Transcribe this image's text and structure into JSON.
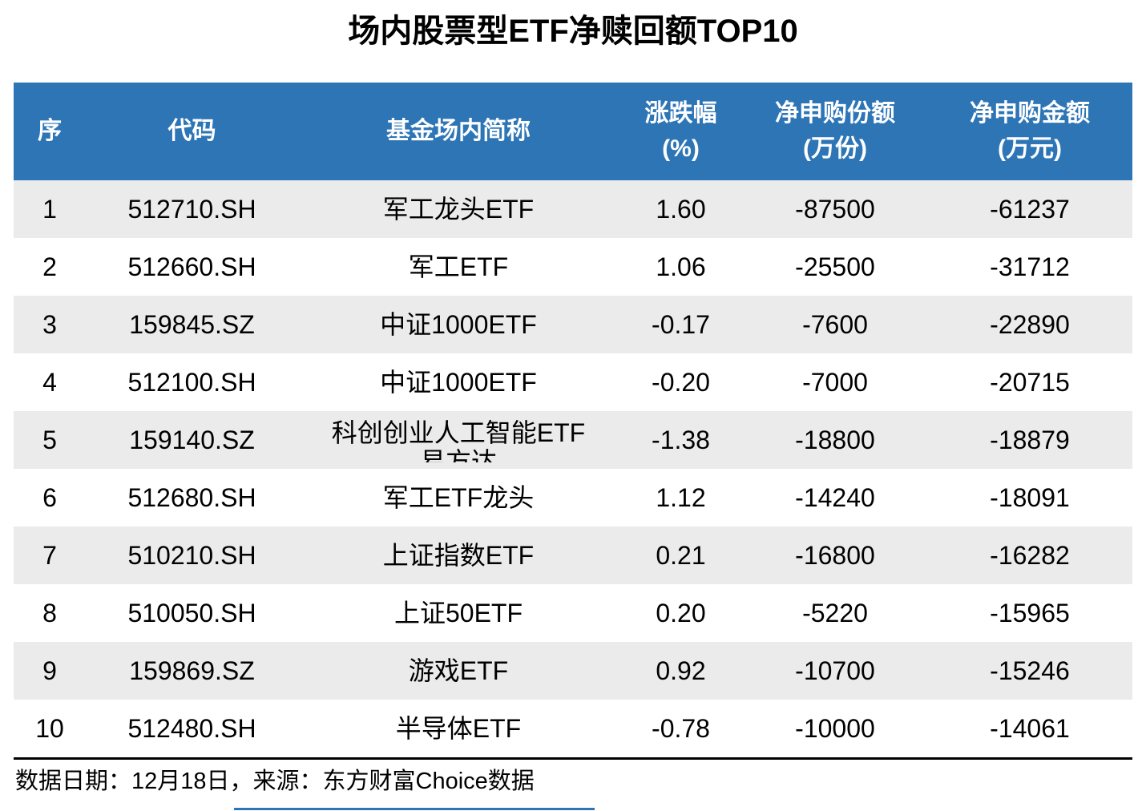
{
  "title": "场内股票型ETF净赎回额TOP10",
  "table": {
    "headers": [
      {
        "line1": "序",
        "line2": ""
      },
      {
        "line1": "代码",
        "line2": ""
      },
      {
        "line1": "基金场内简称",
        "line2": ""
      },
      {
        "line1": "涨跌幅",
        "line2": "(%)"
      },
      {
        "line1": "净申购份额",
        "line2": "(万份)"
      },
      {
        "line1": "净申购金额",
        "line2": "(万元)"
      }
    ],
    "rows": [
      {
        "rank": "1",
        "code": "512710.SH",
        "name": "军工龙头ETF",
        "name2": "",
        "chg": "1.60",
        "shares": "-87500",
        "amount": "-61237"
      },
      {
        "rank": "2",
        "code": "512660.SH",
        "name": "军工ETF",
        "name2": "",
        "chg": "1.06",
        "shares": "-25500",
        "amount": "-31712"
      },
      {
        "rank": "3",
        "code": "159845.SZ",
        "name": "中证1000ETF",
        "name2": "",
        "chg": "-0.17",
        "shares": "-7600",
        "amount": "-22890"
      },
      {
        "rank": "4",
        "code": "512100.SH",
        "name": "中证1000ETF",
        "name2": "",
        "chg": "-0.20",
        "shares": "-7000",
        "amount": "-20715"
      },
      {
        "rank": "5",
        "code": "159140.SZ",
        "name": "科创创业人工智能ETF",
        "name2": "易方达",
        "chg": "-1.38",
        "shares": "-18800",
        "amount": "-18879"
      },
      {
        "rank": "6",
        "code": "512680.SH",
        "name": "军工ETF龙头",
        "name2": "",
        "chg": "1.12",
        "shares": "-14240",
        "amount": "-18091"
      },
      {
        "rank": "7",
        "code": "510210.SH",
        "name": "上证指数ETF",
        "name2": "",
        "chg": "0.21",
        "shares": "-16800",
        "amount": "-16282"
      },
      {
        "rank": "8",
        "code": "510050.SH",
        "name": "上证50ETF",
        "name2": "",
        "chg": "0.20",
        "shares": "-5220",
        "amount": "-15965"
      },
      {
        "rank": "9",
        "code": "159869.SZ",
        "name": "游戏ETF",
        "name2": "",
        "chg": "0.92",
        "shares": "-10700",
        "amount": "-15246"
      },
      {
        "rank": "10",
        "code": "512480.SH",
        "name": "半导体ETF",
        "name2": "",
        "chg": "-0.78",
        "shares": "-10000",
        "amount": "-14061"
      }
    ]
  },
  "footer": {
    "text": "数据日期：12月18日，来源：东方财富Choice数据"
  },
  "colors": {
    "header_bg": "#2E75B6",
    "header_text": "#FFFFFF",
    "row_alt_bg": "#EBEBEB",
    "accent_line": "#2E75B6",
    "divider": "#000000"
  },
  "chart_data": {
    "type": "table",
    "title": "场内股票型ETF净赎回额TOP10",
    "columns": [
      "序",
      "代码",
      "基金场内简称",
      "涨跌幅(%)",
      "净申购份额(万份)",
      "净申购金额(万元)"
    ],
    "rows": [
      [
        1,
        "512710.SH",
        "军工龙头ETF",
        1.6,
        -87500,
        -61237
      ],
      [
        2,
        "512660.SH",
        "军工ETF",
        1.06,
        -25500,
        -31712
      ],
      [
        3,
        "159845.SZ",
        "中证1000ETF",
        -0.17,
        -7600,
        -22890
      ],
      [
        4,
        "512100.SH",
        "中证1000ETF",
        -0.2,
        -7000,
        -20715
      ],
      [
        5,
        "159140.SZ",
        "科创创业人工智能ETF易方达",
        -1.38,
        -18800,
        -18879
      ],
      [
        6,
        "512680.SH",
        "军工ETF龙头",
        1.12,
        -14240,
        -18091
      ],
      [
        7,
        "510210.SH",
        "上证指数ETF",
        0.21,
        -16800,
        -16282
      ],
      [
        8,
        "510050.SH",
        "上证50ETF",
        0.2,
        -5220,
        -15965
      ],
      [
        9,
        "159869.SZ",
        "游戏ETF",
        0.92,
        -10700,
        -15246
      ],
      [
        10,
        "512480.SH",
        "半导体ETF",
        -0.78,
        -10000,
        -14061
      ]
    ],
    "source_note": "数据日期：12月18日，来源：东方财富Choice数据",
    "layout": {
      "header_style": "blue-banner",
      "zebra_striping": true,
      "alignment": "center"
    }
  }
}
